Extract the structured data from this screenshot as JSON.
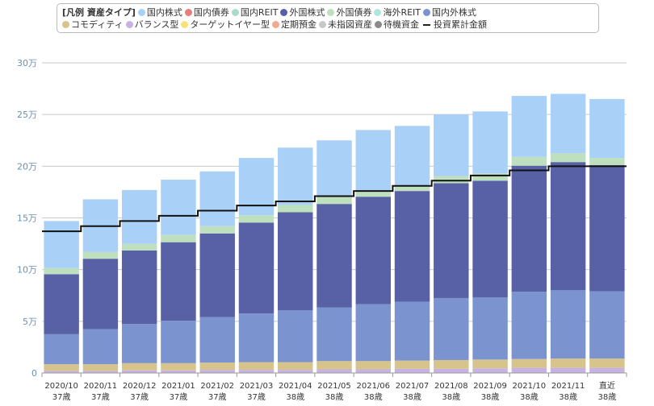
{
  "legend": {
    "title": "[凡例 資産タイプ]",
    "row1": [
      {
        "label": "国内株式",
        "color": "#a9d1f7"
      },
      {
        "label": "国内債券",
        "color": "#e67c7c"
      },
      {
        "label": "国内REIT",
        "color": "#a7dcc9"
      },
      {
        "label": "外国株式",
        "color": "#5860a6"
      },
      {
        "label": "外国債券",
        "color": "#bfe0bf"
      },
      {
        "label": "海外REIT",
        "color": "#aee6df"
      },
      {
        "label": "国内外株式",
        "color": "#7b93cf"
      }
    ],
    "row2": [
      {
        "label": "コモディティ",
        "color": "#d6c48c"
      },
      {
        "label": "バランス型",
        "color": "#c6b3e3"
      },
      {
        "label": "ターゲットイヤー型",
        "color": "#f5e27a"
      },
      {
        "label": "定期預金",
        "color": "#f2a98f"
      },
      {
        "label": "未指図資産",
        "color": "#c8c8c8"
      },
      {
        "label": "待機資金",
        "color": "#8a8a8a"
      }
    ],
    "line_label": "投資累計金額"
  },
  "chart_data": {
    "type": "bar",
    "stacked": true,
    "categories": [
      "2020/10",
      "2020/11",
      "2020/12",
      "2021/01",
      "2021/02",
      "2021/03",
      "2021/04",
      "2021/05",
      "2021/06",
      "2021/07",
      "2021/08",
      "2021/09",
      "2021/10",
      "2021/11",
      "直近"
    ],
    "age_labels": [
      "37歳",
      "37歳",
      "37歳",
      "37歳",
      "37歳",
      "37歳",
      "38歳",
      "38歳",
      "38歳",
      "38歳",
      "38歳",
      "38歳",
      "38歳",
      "38歳",
      "38歳"
    ],
    "ylim": [
      0,
      300000
    ],
    "yticks": [
      0,
      50000,
      100000,
      150000,
      200000,
      250000,
      300000
    ],
    "ytick_labels": [
      "0",
      "5万",
      "10万",
      "15万",
      "20万",
      "25万",
      "30万"
    ],
    "grid": true,
    "series": [
      {
        "name": "バランス型",
        "color": "#c6b3e3",
        "values": [
          2000,
          2000,
          2500,
          2500,
          3000,
          3000,
          3000,
          3500,
          3500,
          4000,
          4000,
          4500,
          5000,
          5000,
          5000
        ]
      },
      {
        "name": "コモディティ",
        "color": "#d6c48c",
        "values": [
          6500,
          6500,
          7000,
          7000,
          7000,
          7500,
          7500,
          8000,
          8000,
          8000,
          8500,
          8500,
          8500,
          9000,
          9000
        ]
      },
      {
        "name": "国内外株式",
        "color": "#7b93cf",
        "values": [
          29000,
          34000,
          38000,
          41000,
          44000,
          47000,
          50000,
          52000,
          55000,
          57000,
          60000,
          60000,
          65000,
          66000,
          65000
        ]
      },
      {
        "name": "外国株式",
        "color": "#5860a6",
        "values": [
          58000,
          68000,
          71000,
          76000,
          81000,
          88000,
          95000,
          100000,
          104000,
          107000,
          111000,
          113000,
          122000,
          124000,
          122000
        ]
      },
      {
        "name": "外国債券",
        "color": "#bfe0bf",
        "values": [
          6000,
          6500,
          6500,
          7000,
          7000,
          7000,
          7000,
          7000,
          5500,
          5500,
          7000,
          7000,
          8500,
          8500,
          7000
        ]
      },
      {
        "name": "国内株式",
        "color": "#a9d1f7",
        "values": [
          45500,
          51000,
          52000,
          53500,
          53000,
          55500,
          55500,
          54500,
          59000,
          57500,
          59500,
          60000,
          59000,
          57500,
          57000
        ]
      }
    ],
    "line_series": {
      "name": "投資累計金額",
      "values": [
        137000,
        142000,
        147000,
        152000,
        157000,
        162000,
        166000,
        171000,
        176000,
        181000,
        186000,
        191000,
        196000,
        200000,
        200000
      ]
    }
  }
}
